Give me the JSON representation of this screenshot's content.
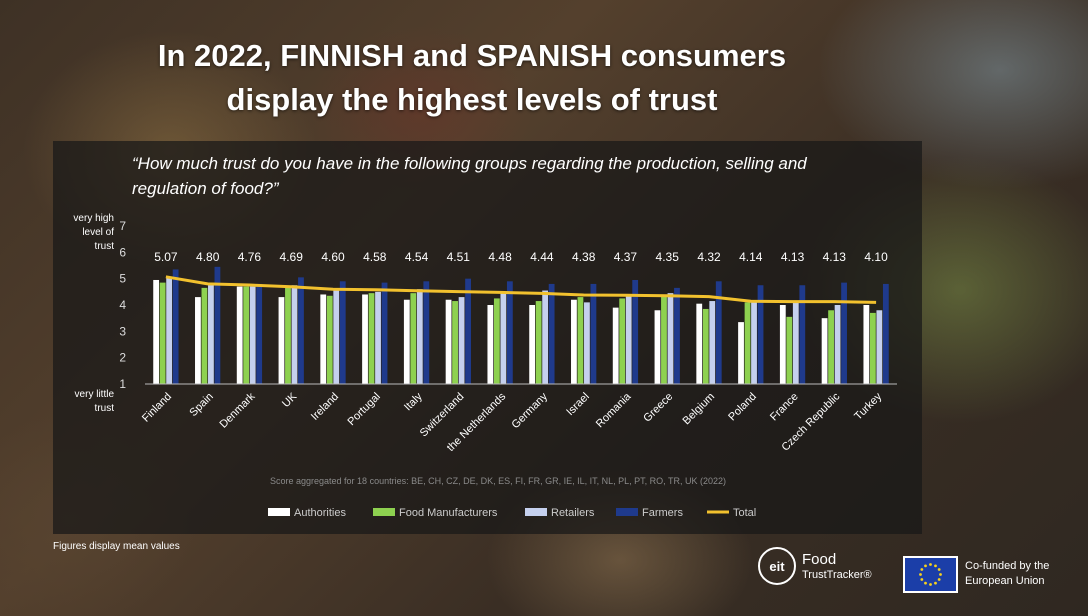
{
  "title_line1": "In 2022, FINNISH and SPANISH consumers",
  "title_line2": "display the highest levels of trust",
  "question_line1": "“How much trust do you have in the following groups regarding the production, selling and",
  "question_line2": "regulation of food?”",
  "y_label_top": [
    "very high",
    "level of",
    "trust"
  ],
  "y_label_bottom": [
    "very little",
    "trust"
  ],
  "footnote": "Score aggregated for 18 countries: BE, CH, CZ, DE, DK, ES, FI, FR, GR, IE, IL, IT, NL, PL, PT, RO, TR, UK   (2022)",
  "figures_note": "Figures display mean values",
  "logo": {
    "eit": "eit",
    "line1": "Food",
    "line2": "TrustTracker®"
  },
  "eu": {
    "line1": "Co-funded by the",
    "line2": "European Union"
  },
  "colors": {
    "authorities": "#ffffff",
    "food_manufacturers": "#8ed150",
    "retailers": "#c5d0ee",
    "farmers": "#1f3a8c",
    "total": "#f2c12e"
  },
  "chart_data": {
    "type": "bar",
    "ylim": [
      1,
      7
    ],
    "yticks": [
      1,
      2,
      3,
      4,
      5,
      6,
      7
    ],
    "grid": false,
    "legend_position": "bottom",
    "categories": [
      "Finland",
      "Spain",
      "Denmark",
      "UK",
      "Ireland",
      "Portugal",
      "Italy",
      "Switzerland",
      "the Netherlands",
      "Germany",
      "Israel",
      "Romania",
      "Greece",
      "Belgium",
      "Poland",
      "France",
      "Czech Republic",
      "Turkey"
    ],
    "series": [
      {
        "name": "Authorities",
        "color": "#ffffff",
        "values": [
          4.95,
          4.3,
          4.7,
          4.3,
          4.4,
          4.4,
          4.2,
          4.2,
          4.0,
          4.0,
          4.2,
          3.9,
          3.8,
          4.05,
          3.35,
          4.0,
          3.5,
          4.0
        ]
      },
      {
        "name": "Food Manufacturers",
        "color": "#8ed150",
        "values": [
          4.85,
          4.65,
          4.7,
          4.65,
          4.35,
          4.45,
          4.45,
          4.15,
          4.25,
          4.15,
          4.3,
          4.25,
          4.4,
          3.85,
          4.1,
          3.55,
          3.8,
          3.7
        ]
      },
      {
        "name": "Retailers",
        "color": "#c5d0ee",
        "values": [
          5.05,
          4.75,
          4.7,
          4.75,
          4.55,
          4.5,
          4.6,
          4.3,
          4.45,
          4.55,
          4.1,
          4.35,
          4.45,
          4.15,
          4.15,
          4.15,
          4.0,
          3.8
        ]
      },
      {
        "name": "Farmers",
        "color": "#1f3a8c",
        "values": [
          5.35,
          5.45,
          4.8,
          5.05,
          4.9,
          4.85,
          4.9,
          5.0,
          4.9,
          4.8,
          4.8,
          4.95,
          4.65,
          4.9,
          4.75,
          4.75,
          4.85,
          4.8
        ]
      },
      {
        "name": "Total",
        "color": "#f2c12e",
        "type": "line",
        "values": [
          5.07,
          4.8,
          4.76,
          4.69,
          4.6,
          4.58,
          4.54,
          4.51,
          4.48,
          4.44,
          4.38,
          4.37,
          4.35,
          4.32,
          4.14,
          4.13,
          4.13,
          4.1
        ]
      }
    ],
    "total_labels": [
      "5.07",
      "4.80",
      "4.76",
      "4.69",
      "4.60",
      "4.58",
      "4.54",
      "4.51",
      "4.48",
      "4.44",
      "4.38",
      "4.37",
      "4.35",
      "4.32",
      "4.14",
      "4.13",
      "4.13",
      "4.10"
    ]
  }
}
